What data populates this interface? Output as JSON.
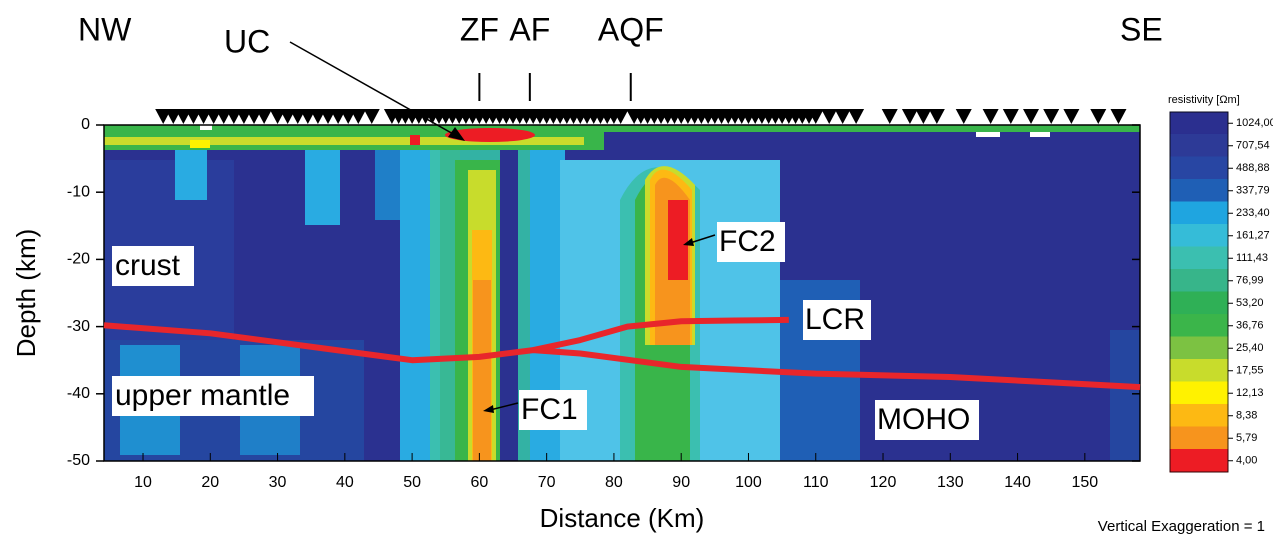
{
  "chart_data": {
    "type": "section",
    "left_label": "NW",
    "right_label": "SE",
    "x_label": "Distance (Km)",
    "y_label": "Depth (km)",
    "note": "Vertical Exaggeration = 1",
    "regions": [
      "crust",
      "upper mantle"
    ],
    "features": [
      "UC",
      "FC1",
      "FC2"
    ],
    "xlim": [
      4.2,
      158.2
    ],
    "xticks": [
      10,
      20,
      30,
      40,
      50,
      60,
      70,
      80,
      90,
      100,
      110,
      120,
      130,
      140,
      150
    ],
    "ylim": [
      -50,
      0
    ],
    "yticks": [
      0,
      -10,
      -20,
      -30,
      -40,
      -50
    ],
    "faults": [
      {
        "name": "ZF",
        "x": 60
      },
      {
        "name": "AF",
        "x": 67.5
      },
      {
        "name": "AQF",
        "x": 82.5
      }
    ],
    "stations": [
      13,
      14.5,
      16,
      17.5,
      19,
      20.5,
      22,
      23.5,
      25,
      26.5,
      28,
      30,
      31.5,
      33,
      34.5,
      36,
      37.5,
      39,
      40.5,
      42,
      44,
      47,
      48,
      49,
      50,
      51,
      52,
      53,
      54,
      55,
      56,
      57,
      58,
      59,
      60,
      61,
      62,
      63,
      64,
      65,
      66,
      67,
      68,
      69,
      70,
      71,
      72,
      73,
      74,
      75,
      76,
      77,
      78,
      79,
      80,
      81,
      83,
      84,
      85,
      86,
      87,
      88,
      89,
      90,
      91,
      92,
      93,
      94,
      95,
      96,
      97,
      98,
      99,
      100,
      101,
      102,
      103,
      104,
      105,
      106,
      107,
      108,
      109,
      110,
      112,
      114,
      116,
      121,
      124,
      126,
      128,
      132,
      136,
      139,
      142,
      145,
      148,
      152,
      155
    ],
    "series": [
      {
        "name": "LCR",
        "color": "#e8262b",
        "x": [
          68,
          75,
          82,
          90,
          98,
          106
        ],
        "values": [
          -33.5,
          -32,
          -30,
          -29.2,
          -29.1,
          -29
        ]
      },
      {
        "name": "MOHO",
        "color": "#e8262b",
        "x": [
          4.2,
          20,
          35,
          50,
          60,
          68,
          75,
          90,
          110,
          130,
          158.2
        ],
        "values": [
          -29.8,
          -31,
          -33,
          -35,
          -34.5,
          -33.5,
          -34,
          -36,
          -37,
          -37.5,
          -39
        ]
      }
    ],
    "colorbar": {
      "title": "resistivity [Ωm]",
      "log": true,
      "ticks": [
        {
          "value": 1024,
          "label": "1024,00"
        },
        {
          "value": 707.54,
          "label": "707,54"
        },
        {
          "value": 488.88,
          "label": "488,88"
        },
        {
          "value": 337.79,
          "label": "337,79"
        },
        {
          "value": 233.4,
          "label": "233,40"
        },
        {
          "value": 161.27,
          "label": "161,27"
        },
        {
          "value": 111.43,
          "label": "111,43"
        },
        {
          "value": 76.99,
          "label": "76,99"
        },
        {
          "value": 53.2,
          "label": "53,20"
        },
        {
          "value": 36.76,
          "label": "36,76"
        },
        {
          "value": 25.4,
          "label": "25,40"
        },
        {
          "value": 17.55,
          "label": "17,55"
        },
        {
          "value": 12.13,
          "label": "12,13"
        },
        {
          "value": 8.38,
          "label": "8,38"
        },
        {
          "value": 5.79,
          "label": "5,79"
        },
        {
          "value": 4,
          "label": "4,00"
        }
      ],
      "colors": [
        "#2b2f8f",
        "#2d3a97",
        "#2846a3",
        "#1f5fb5",
        "#1fa5e0",
        "#35bcd8",
        "#3bbfb0",
        "#37b58a",
        "#2fb056",
        "#3bb54a",
        "#7cc242",
        "#c8dc2c",
        "#fff200",
        "#fdb913",
        "#f7941d",
        "#ed1c24"
      ]
    }
  }
}
